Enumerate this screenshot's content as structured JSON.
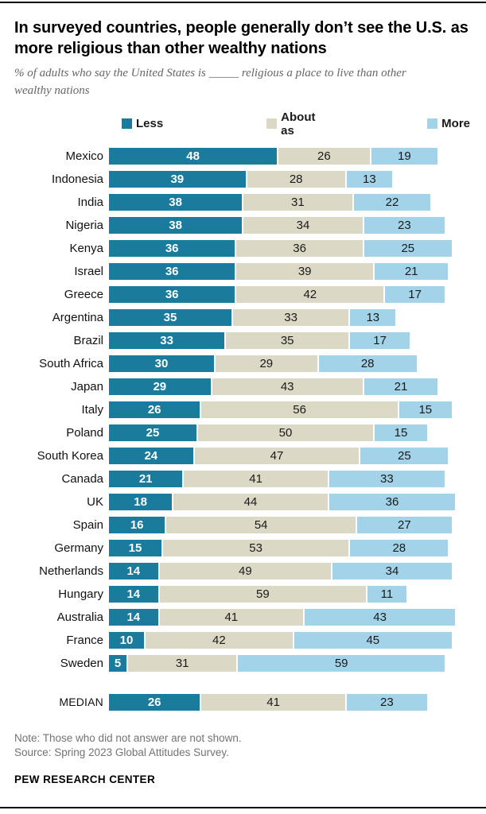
{
  "header": {
    "title": "In surveyed countries, people generally don’t see the U.S. as more religious than other wealthy nations",
    "subtitle": "% of adults who say the United States is _____ religious a place to live than other wealthy nations"
  },
  "chart_data": {
    "type": "bar",
    "stacked": true,
    "orientation": "horizontal",
    "xlim": [
      0,
      100
    ],
    "grid": false,
    "legend_position": "top",
    "legend": [
      {
        "label": "Less",
        "color": "#1b7b9c"
      },
      {
        "label": "About as",
        "color": "#dcd8c6"
      },
      {
        "label": "More",
        "color": "#a3d3e8"
      }
    ],
    "colors": {
      "less": "#1b7b9c",
      "about": "#dcd8c6",
      "more": "#a3d3e8"
    },
    "categories": [
      "Mexico",
      "Indonesia",
      "India",
      "Nigeria",
      "Kenya",
      "Israel",
      "Greece",
      "Argentina",
      "Brazil",
      "South Africa",
      "Japan",
      "Italy",
      "Poland",
      "South Korea",
      "Canada",
      "UK",
      "Spain",
      "Germany",
      "Netherlands",
      "Hungary",
      "Australia",
      "France",
      "Sweden"
    ],
    "series": [
      {
        "name": "Less",
        "values": [
          48,
          39,
          38,
          38,
          36,
          36,
          36,
          35,
          33,
          30,
          29,
          26,
          25,
          24,
          21,
          18,
          16,
          15,
          14,
          14,
          14,
          10,
          5
        ]
      },
      {
        "name": "About as",
        "values": [
          26,
          28,
          31,
          34,
          36,
          39,
          42,
          33,
          35,
          29,
          43,
          56,
          50,
          47,
          41,
          44,
          54,
          53,
          49,
          59,
          41,
          42,
          31
        ]
      },
      {
        "name": "More",
        "values": [
          19,
          13,
          22,
          23,
          25,
          21,
          17,
          13,
          17,
          28,
          21,
          15,
          15,
          25,
          33,
          36,
          27,
          28,
          34,
          11,
          43,
          45,
          59
        ]
      }
    ],
    "median": {
      "label": "MEDIAN",
      "values": [
        26,
        41,
        23
      ]
    }
  },
  "footer": {
    "note": "Note: Those who did not answer are not shown.",
    "source": "Source: Spring 2023 Global Attitudes Survey.",
    "brand": "PEW RESEARCH CENTER"
  }
}
